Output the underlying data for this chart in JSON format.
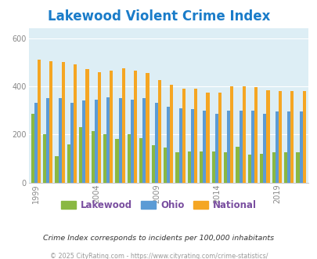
{
  "title": "Lakewood Violent Crime Index",
  "years": [
    1999,
    2000,
    2001,
    2002,
    2003,
    2004,
    2005,
    2006,
    2007,
    2008,
    2009,
    2010,
    2011,
    2012,
    2013,
    2014,
    2015,
    2016,
    2017,
    2018,
    2019,
    2020,
    2021
  ],
  "lakewood": [
    285,
    200,
    110,
    160,
    230,
    215,
    200,
    180,
    200,
    185,
    155,
    145,
    125,
    130,
    130,
    130,
    125,
    150,
    115,
    120,
    125,
    125,
    125
  ],
  "ohio": [
    330,
    350,
    350,
    330,
    340,
    345,
    355,
    350,
    345,
    350,
    330,
    315,
    310,
    305,
    300,
    285,
    300,
    300,
    300,
    285,
    295,
    295,
    295
  ],
  "national": [
    510,
    505,
    500,
    490,
    470,
    460,
    465,
    475,
    465,
    455,
    425,
    405,
    390,
    390,
    375,
    375,
    400,
    400,
    395,
    385,
    380,
    380,
    380
  ],
  "bar_width": 0.27,
  "colors": {
    "lakewood": "#8ab842",
    "ohio": "#5b9bd5",
    "national": "#f5a623"
  },
  "plot_bg": "#ddeef5",
  "ylim": [
    0,
    640
  ],
  "yticks": [
    0,
    200,
    400,
    600
  ],
  "title_fontsize": 12,
  "title_color": "#1a7cc9",
  "footnote1": "Crime Index corresponds to incidents per 100,000 inhabitants",
  "footnote2": "© 2025 CityRating.com - https://www.cityrating.com/crime-statistics/",
  "xtick_years": [
    1999,
    2004,
    2009,
    2014,
    2019
  ],
  "legend_labels": [
    "Lakewood",
    "Ohio",
    "National"
  ],
  "legend_color": "#7a4fa0"
}
